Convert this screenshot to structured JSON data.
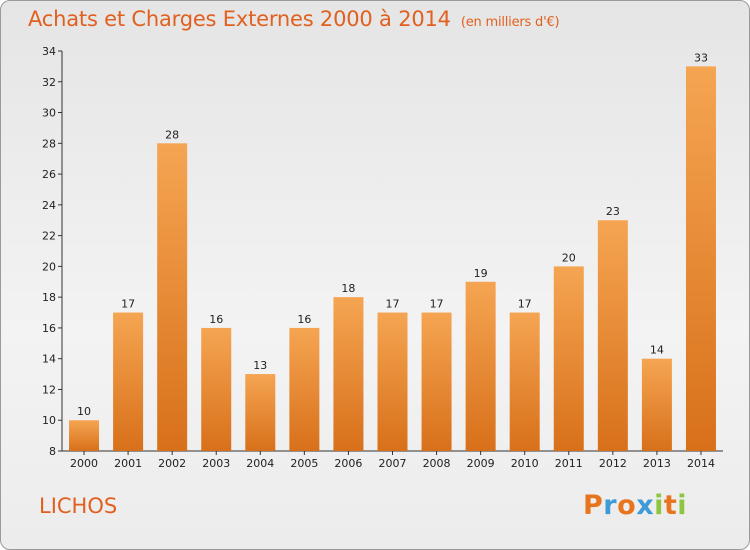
{
  "header": {
    "title": "Achats et Charges Externes 2000 à 2014",
    "subtitle": "(en milliers d'€)"
  },
  "footer": {
    "commune": "LICHOS",
    "logo": [
      "P",
      "r",
      "o",
      "x",
      "i",
      "t",
      "i"
    ]
  },
  "colors": {
    "bar_top": "#f5a552",
    "bar_bottom": "#d8701a",
    "title": "#e2601f",
    "logo_letters": [
      "#e8741e",
      "#3f9ad6",
      "#e8741e",
      "#3f9ad6",
      "#8dc63f",
      "#e8741e",
      "#8dc63f"
    ]
  },
  "chart_data": {
    "type": "bar",
    "categories": [
      "2000",
      "2001",
      "2002",
      "2003",
      "2004",
      "2005",
      "2006",
      "2007",
      "2008",
      "2009",
      "2010",
      "2011",
      "2012",
      "2013",
      "2014"
    ],
    "values": [
      10,
      17,
      28,
      16,
      13,
      16,
      18,
      17,
      17,
      19,
      17,
      20,
      23,
      14,
      33
    ],
    "ylim": [
      8,
      34
    ],
    "yticks": [
      8,
      10,
      12,
      14,
      16,
      18,
      20,
      22,
      24,
      26,
      28,
      30,
      32,
      34
    ],
    "grid": false,
    "title": "Achats et Charges Externes 2000 à 2014",
    "xlabel": "",
    "ylabel": ""
  }
}
